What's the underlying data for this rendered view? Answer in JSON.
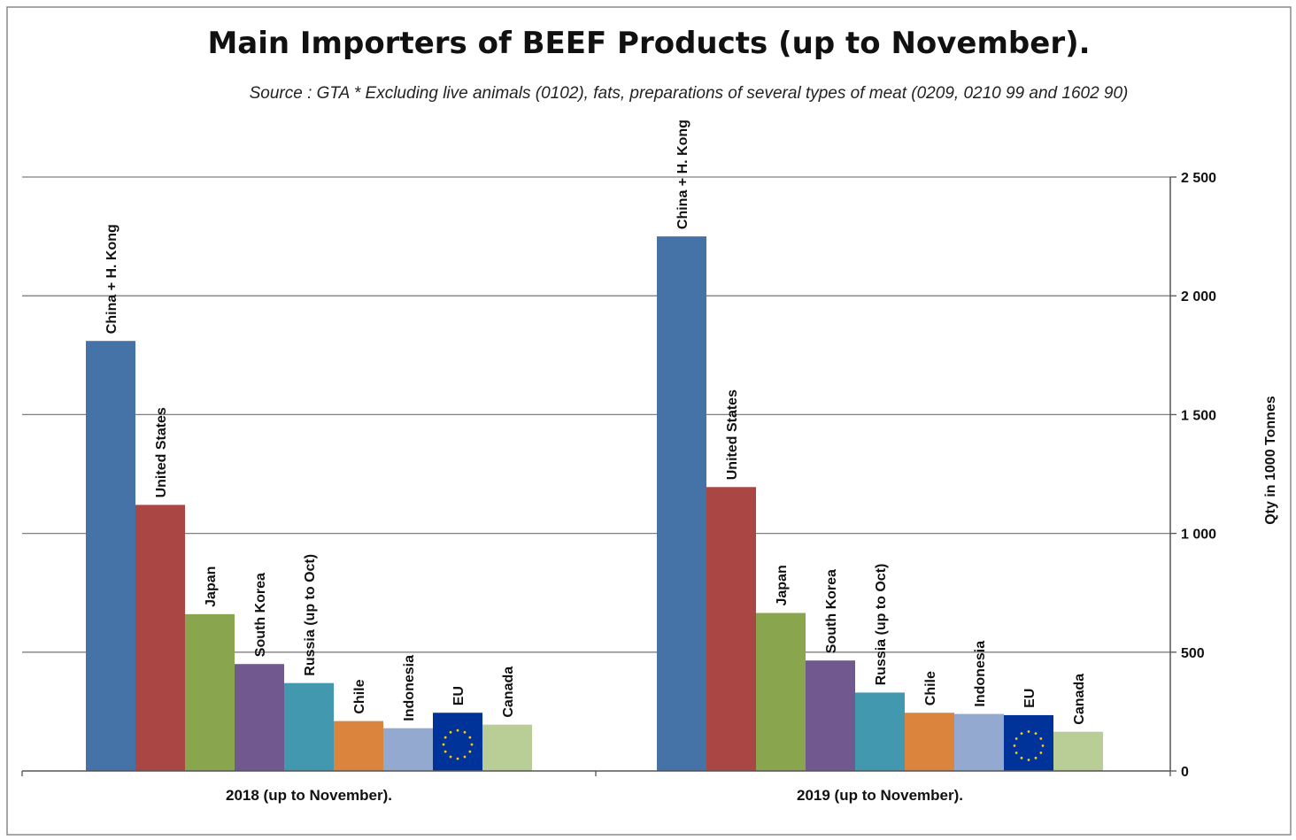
{
  "chart_data": {
    "type": "bar",
    "title": "Main Importers of BEEF Products (up to November).",
    "subtitle": "Source : GTA * Excluding live animals (0102), fats, preparations  of several types of meat (0209, 0210 99 and 1602 90)",
    "ylabel": "Qty in 1000 Tonnes",
    "xlabel": "",
    "ylim": [
      0,
      2500
    ],
    "yticks": [
      0,
      500,
      1000,
      1500,
      2000,
      2500
    ],
    "ytick_labels": [
      "0",
      "500",
      "1 000",
      "1 500",
      "2 000",
      "2 500"
    ],
    "y_axis_side": "right",
    "grid": true,
    "categories": [
      "2018 (up to November).",
      "2019 (up to November)."
    ],
    "series": [
      {
        "name": "China + H. Kong",
        "color": "#4572A7",
        "values": [
          1810,
          2250
        ]
      },
      {
        "name": "United States",
        "color": "#AA4643",
        "values": [
          1120,
          1195
        ]
      },
      {
        "name": "Japan",
        "color": "#89A54E",
        "values": [
          660,
          665
        ]
      },
      {
        "name": "South Korea",
        "color": "#71588F",
        "values": [
          450,
          465
        ]
      },
      {
        "name": "Russia (up to Oct)",
        "color": "#4198AF",
        "values": [
          370,
          330
        ]
      },
      {
        "name": "Chile",
        "color": "#DB843D",
        "values": [
          210,
          245
        ]
      },
      {
        "name": "Indonesia",
        "color": "#93A9CF",
        "values": [
          180,
          240
        ]
      },
      {
        "name": "EU",
        "color": "#003399",
        "values": [
          245,
          235
        ]
      },
      {
        "name": "Canada",
        "color": "#B9CD96",
        "values": [
          195,
          165
        ]
      }
    ]
  }
}
